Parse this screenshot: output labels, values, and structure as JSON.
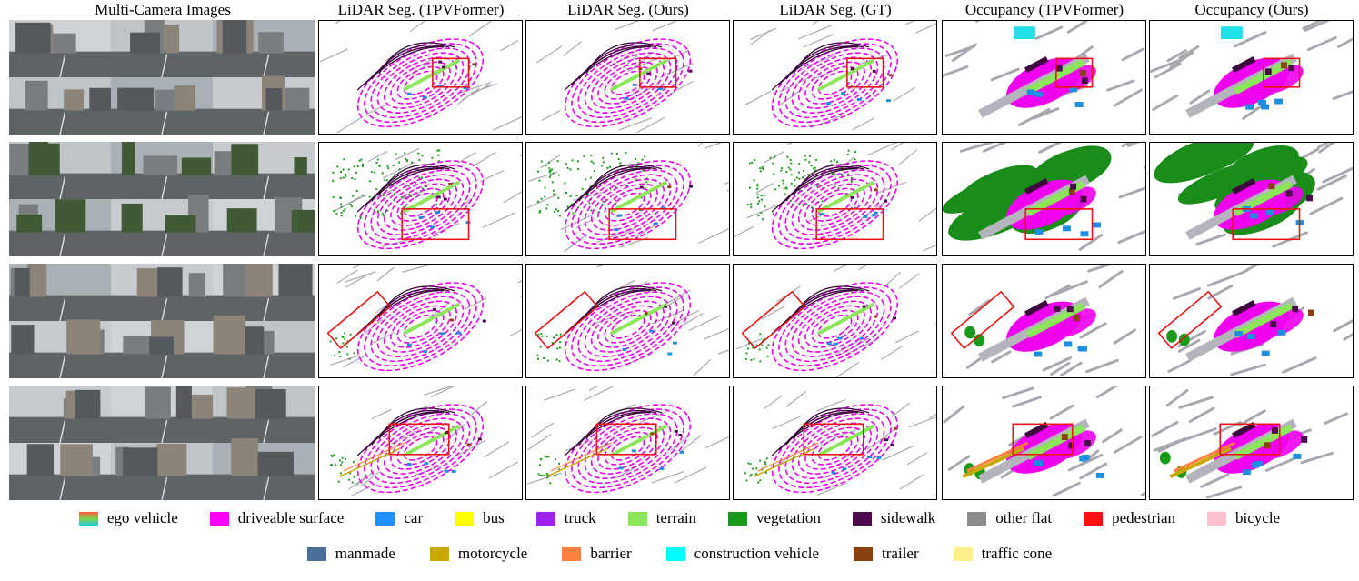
{
  "headers": [
    {
      "key": "camera",
      "label": "Multi-Camera Images"
    },
    {
      "key": "seg_tpv",
      "label": "LiDAR Seg. (TPVFormer)"
    },
    {
      "key": "seg_ours",
      "label": "LiDAR Seg. (Ours)"
    },
    {
      "key": "seg_gt",
      "label": "LiDAR Seg. (GT)"
    },
    {
      "key": "occ_tpv",
      "label": "Occupancy (TPVFormer)"
    },
    {
      "key": "occ_ours",
      "label": "Occupancy (Ours)"
    }
  ],
  "legend": {
    "row1": [
      {
        "label": "ego vehicle",
        "color": "gradient",
        "icon": "ego-vehicle-swatch"
      },
      {
        "label": "driveable surface",
        "color": "#ff00ff"
      },
      {
        "label": "car",
        "color": "#1e90ff"
      },
      {
        "label": "bus",
        "color": "#ffff00"
      },
      {
        "label": "truck",
        "color": "#a020f0"
      },
      {
        "label": "terrain",
        "color": "#8ce65a"
      },
      {
        "label": "vegetation",
        "color": "#1a9a1a"
      },
      {
        "label": "sidewalk",
        "color": "#4b0a4b"
      },
      {
        "label": "other flat",
        "color": "#8c8c8c"
      },
      {
        "label": "pedestrian",
        "color": "#ff1010"
      },
      {
        "label": "bicycle",
        "color": "#ffc0cb"
      }
    ],
    "row2": [
      {
        "label": "manmade",
        "color": "#4a6f9a"
      },
      {
        "label": "motorcycle",
        "color": "#c8a800"
      },
      {
        "label": "barrier",
        "color": "#ff8040"
      },
      {
        "label": "construction vehicle",
        "color": "#00ffff"
      },
      {
        "label": "trailer",
        "color": "#8b4010"
      },
      {
        "label": "traffic cone",
        "color": "#fff08c"
      }
    ]
  }
}
